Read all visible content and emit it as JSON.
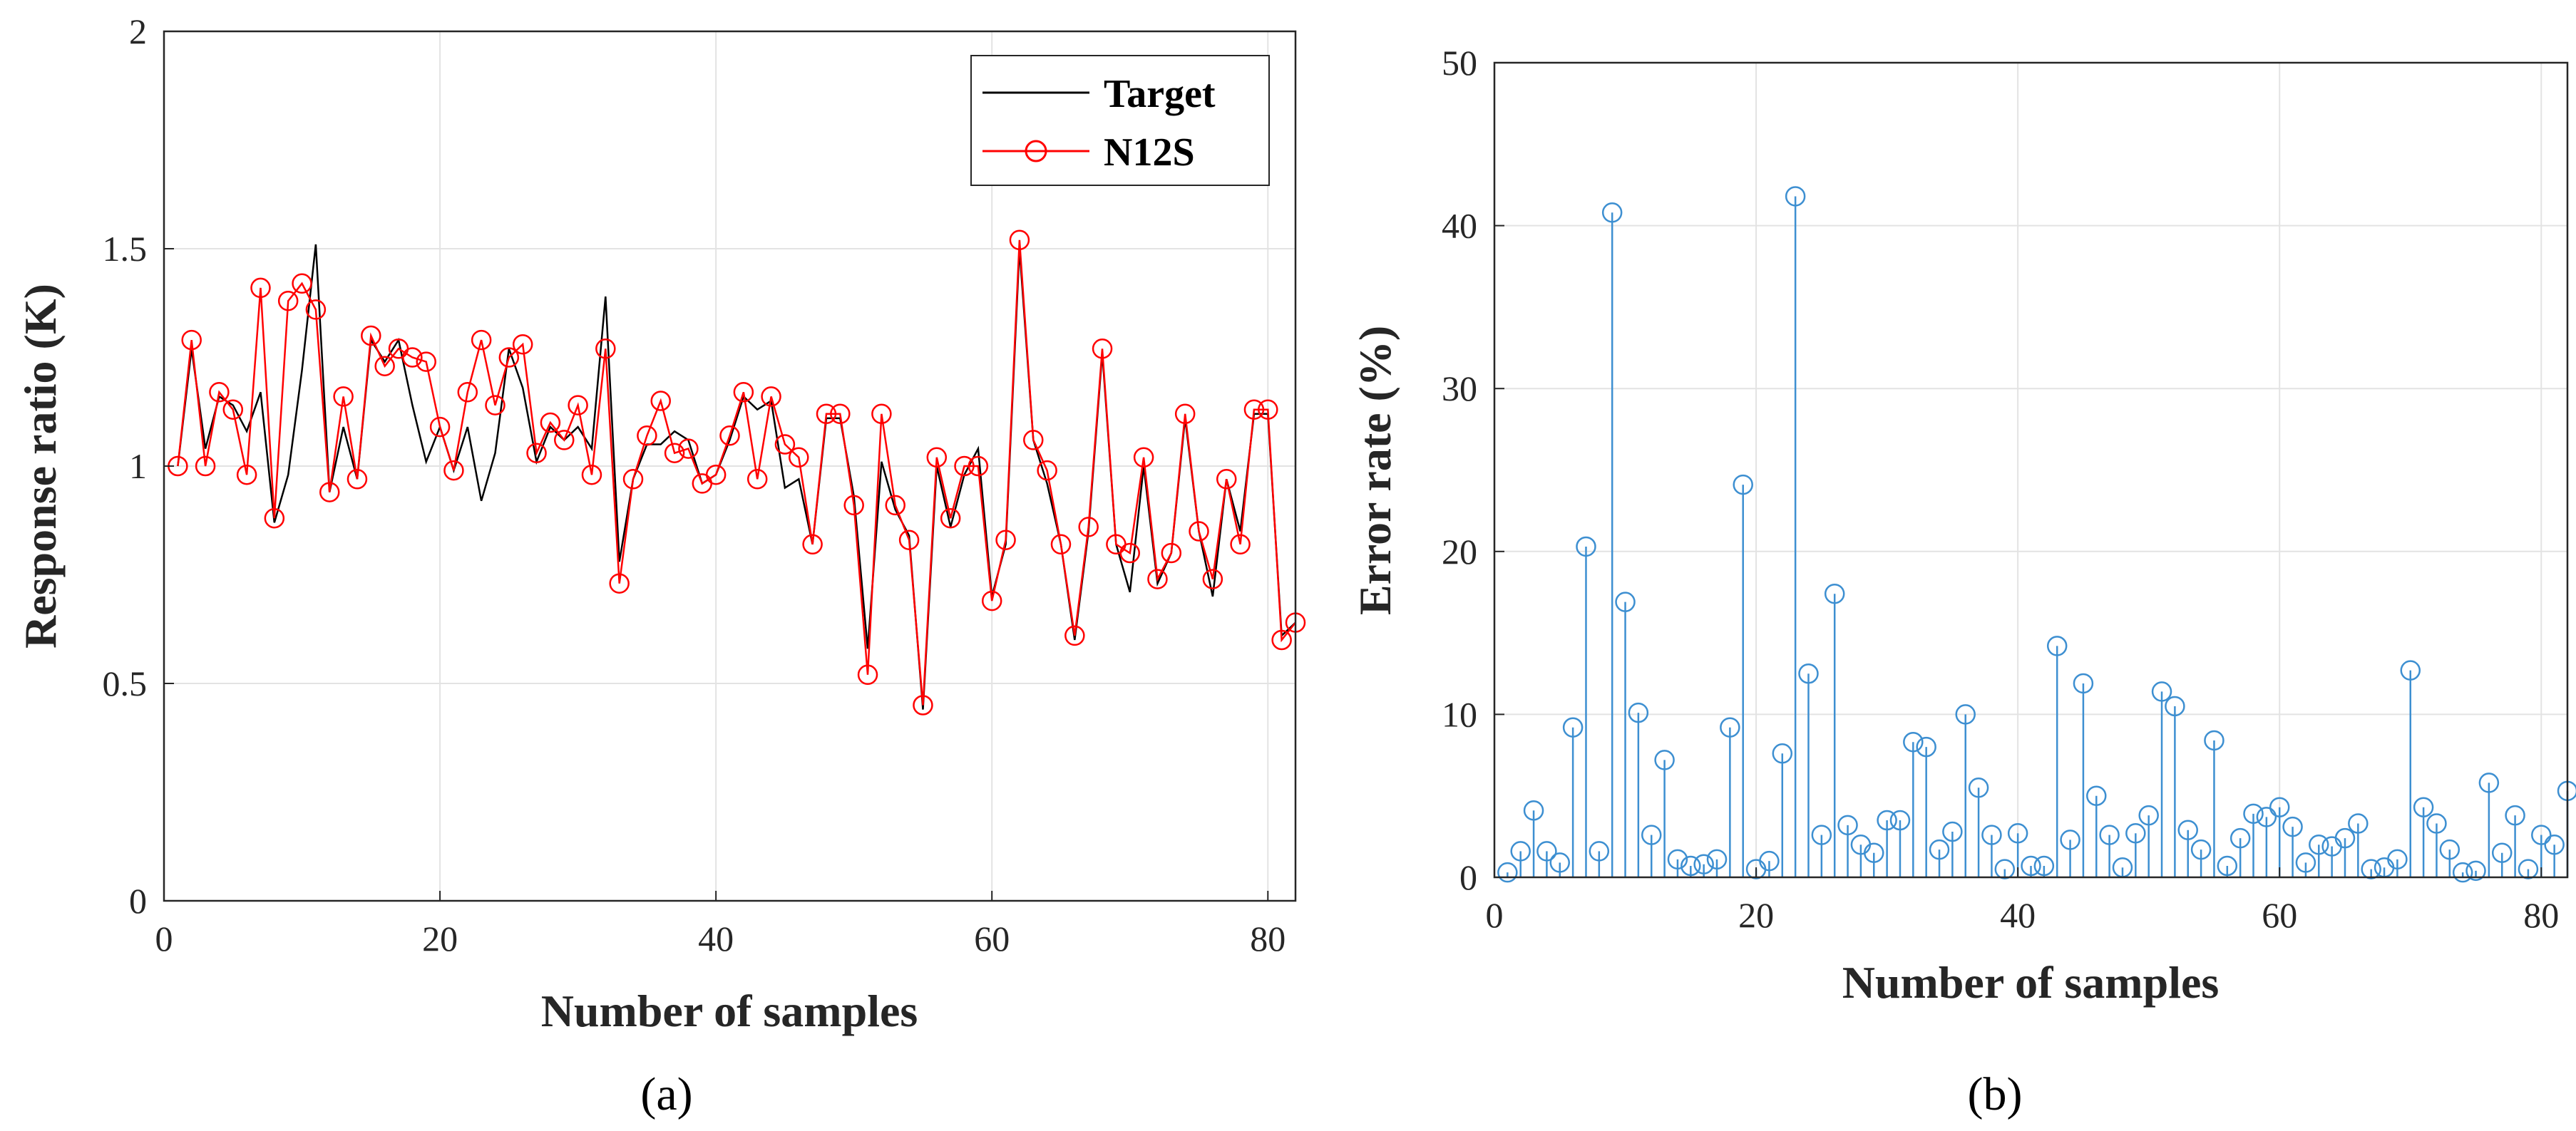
{
  "colors": {
    "target": "#000000",
    "prediction": "#ff0000",
    "stem": "#3d8fd1",
    "grid": "#e3e3e3",
    "axis": "#262626"
  },
  "chart_data": [
    {
      "type": "line",
      "panel": "a",
      "caption": "(a)",
      "xlabel": "Number of samples",
      "ylabel": "Response ratio (K)",
      "xlim": [
        0,
        82
      ],
      "ylim": [
        0,
        2
      ],
      "xticks": [
        0,
        20,
        40,
        60,
        80
      ],
      "yticks": [
        0,
        0.5,
        1,
        1.5,
        2
      ],
      "xtick_labels": [
        "0",
        "20",
        "40",
        "60",
        "80"
      ],
      "ytick_labels": [
        "0",
        "0.5",
        "1",
        "1.5",
        "2"
      ],
      "grid": true,
      "legend_position": "top-right",
      "series": [
        {
          "name": "Target",
          "marker": "none",
          "x": [
            1,
            2,
            3,
            4,
            5,
            6,
            7,
            8,
            9,
            10,
            11,
            12,
            13,
            14,
            15,
            16,
            17,
            18,
            19,
            20,
            21,
            22,
            23,
            24,
            25,
            26,
            27,
            28,
            29,
            30,
            31,
            32,
            33,
            34,
            35,
            36,
            37,
            38,
            39,
            40,
            41,
            42,
            43,
            44,
            45,
            46,
            47,
            48,
            49,
            50,
            51,
            52,
            53,
            54,
            55,
            56,
            57,
            58,
            59,
            60,
            61,
            62,
            63,
            64,
            65,
            66,
            67,
            68,
            69,
            70,
            71,
            72,
            73,
            74,
            75,
            76,
            77,
            78,
            79,
            80,
            81,
            82
          ],
          "values": [
            1,
            1.27,
            1.04,
            1.16,
            1.14,
            1.08,
            1.17,
            0.87,
            0.98,
            1.22,
            1.51,
            0.94,
            1.09,
            0.97,
            1.29,
            1.24,
            1.29,
            1.14,
            1.01,
            1.09,
            0.99,
            1.09,
            0.92,
            1.03,
            1.27,
            1.18,
            1.01,
            1.09,
            1.06,
            1.09,
            1.04,
            1.39,
            0.78,
            0.97,
            1.05,
            1.05,
            1.08,
            1.06,
            0.96,
            0.98,
            1.06,
            1.16,
            1.13,
            1.15,
            0.95,
            0.97,
            0.82,
            1.11,
            1.11,
            0.93,
            0.58,
            1.01,
            0.9,
            0.84,
            0.44,
            1,
            0.86,
            0.98,
            1.04,
            0.7,
            0.82,
            1.5,
            1.06,
            0.96,
            0.82,
            0.6,
            0.85,
            1.26,
            0.82,
            0.71,
            1,
            0.73,
            0.8,
            1.11,
            0.85,
            0.7,
            0.97,
            0.85,
            1.12,
            1.12,
            0.61,
            0.64
          ]
        },
        {
          "name": "N12S",
          "marker": "circle",
          "x": [
            1,
            2,
            3,
            4,
            5,
            6,
            7,
            8,
            9,
            10,
            11,
            12,
            13,
            14,
            15,
            16,
            17,
            18,
            19,
            20,
            21,
            22,
            23,
            24,
            25,
            26,
            27,
            28,
            29,
            30,
            31,
            32,
            33,
            34,
            35,
            36,
            37,
            38,
            39,
            40,
            41,
            42,
            43,
            44,
            45,
            46,
            47,
            48,
            49,
            50,
            51,
            52,
            53,
            54,
            55,
            56,
            57,
            58,
            59,
            60,
            61,
            62,
            63,
            64,
            65,
            66,
            67,
            68,
            69,
            70,
            71,
            72,
            73,
            74,
            75,
            76,
            77,
            78,
            79,
            80,
            81,
            82
          ],
          "values": [
            1,
            1.29,
            1,
            1.17,
            1.13,
            0.98,
            1.41,
            0.88,
            1.38,
            1.42,
            1.36,
            0.94,
            1.16,
            0.97,
            1.3,
            1.23,
            1.27,
            1.25,
            1.24,
            1.09,
            0.99,
            1.17,
            1.29,
            1.14,
            1.25,
            1.28,
            1.03,
            1.1,
            1.06,
            1.14,
            0.98,
            1.27,
            0.73,
            0.97,
            1.07,
            1.15,
            1.03,
            1.04,
            0.96,
            0.98,
            1.07,
            1.17,
            0.97,
            1.16,
            1.05,
            1.02,
            0.82,
            1.12,
            1.12,
            0.91,
            0.52,
            1.12,
            0.91,
            0.83,
            0.45,
            1.02,
            0.88,
            1,
            1,
            0.69,
            0.83,
            1.52,
            1.06,
            0.99,
            0.82,
            0.61,
            0.86,
            1.27,
            0.82,
            0.8,
            1.02,
            0.74,
            0.8,
            1.12,
            0.85,
            0.74,
            0.97,
            0.82,
            1.13,
            1.13,
            0.6,
            0.64
          ]
        }
      ]
    },
    {
      "type": "stem",
      "panel": "b",
      "caption": "(b)",
      "xlabel": "Number of samples",
      "ylabel": "Error rate (%)",
      "xlim": [
        0,
        82
      ],
      "ylim": [
        0,
        50
      ],
      "xticks": [
        0,
        20,
        40,
        60,
        80
      ],
      "yticks": [
        0,
        10,
        20,
        30,
        40,
        50
      ],
      "xtick_labels": [
        "0",
        "20",
        "40",
        "60",
        "80"
      ],
      "ytick_labels": [
        "0",
        "10",
        "20",
        "30",
        "40",
        "50"
      ],
      "grid": true,
      "series": [
        {
          "name": "Error rate",
          "marker": "circle",
          "x": [
            1,
            2,
            3,
            4,
            5,
            6,
            7,
            8,
            9,
            10,
            11,
            12,
            13,
            14,
            15,
            16,
            17,
            18,
            19,
            20,
            21,
            22,
            23,
            24,
            25,
            26,
            27,
            28,
            29,
            30,
            31,
            32,
            33,
            34,
            35,
            36,
            37,
            38,
            39,
            40,
            41,
            42,
            43,
            44,
            45,
            46,
            47,
            48,
            49,
            50,
            51,
            52,
            53,
            54,
            55,
            56,
            57,
            58,
            59,
            60,
            61,
            62,
            63,
            64,
            65,
            66,
            67,
            68,
            69,
            70,
            71,
            72,
            73,
            74,
            75,
            76,
            77,
            78,
            79,
            80,
            81,
            82
          ],
          "values": [
            0.3,
            1.6,
            4.1,
            1.6,
            0.9,
            9.2,
            20.3,
            1.6,
            40.8,
            16.9,
            10.1,
            2.6,
            7.2,
            1.1,
            0.7,
            0.8,
            1.1,
            9.2,
            24.1,
            0.5,
            1,
            7.6,
            41.8,
            12.5,
            2.6,
            17.4,
            3.2,
            2,
            1.5,
            3.5,
            3.5,
            8.3,
            8,
            1.7,
            2.8,
            10,
            5.5,
            2.6,
            0.5,
            2.7,
            0.7,
            0.7,
            14.2,
            2.3,
            11.9,
            5,
            2.6,
            0.6,
            2.7,
            3.8,
            11.4,
            10.5,
            2.9,
            1.7,
            8.4,
            0.7,
            2.4,
            3.9,
            3.7,
            4.3,
            3.1,
            0.9,
            2,
            1.9,
            2.4,
            3.3,
            0.5,
            0.6,
            1.1,
            12.7,
            4.3,
            3.3,
            1.7,
            0.3,
            0.4,
            5.8,
            1.5,
            3.8,
            0.5,
            2.6,
            2,
            5.3
          ]
        }
      ]
    }
  ]
}
